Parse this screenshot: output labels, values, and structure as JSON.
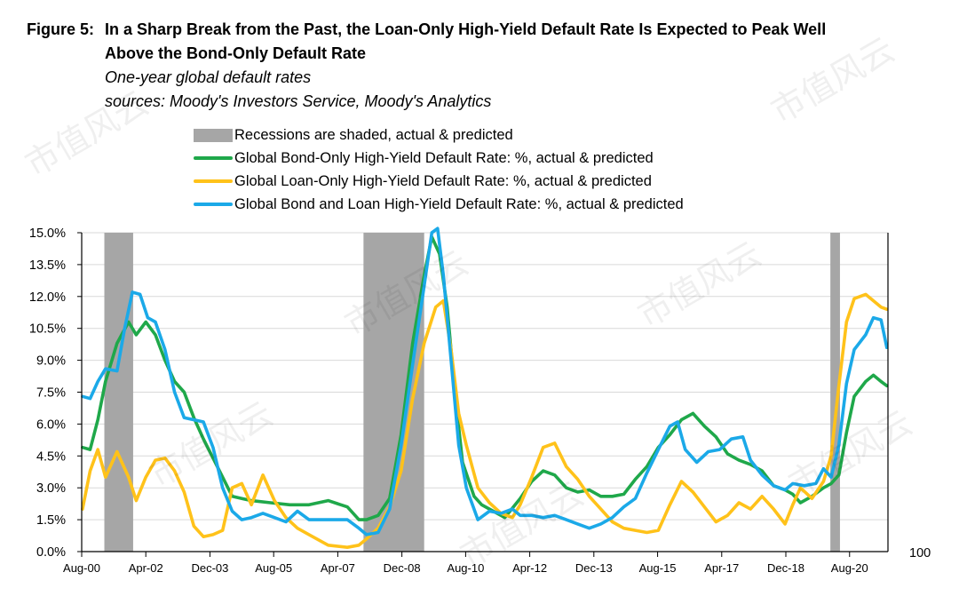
{
  "figure_label": "Figure 5:",
  "title": "In a Sharp Break from the Past, the Loan-Only High-Yield Default Rate Is Expected to Peak Well Above the Bond-Only Default Rate",
  "subtitle": "One-year global default rates",
  "sources": "sources: Moody's Investors Service, Moody's Analytics",
  "watermark": "市值风云",
  "legend": {
    "recession": "Recessions are shaded, actual & predicted",
    "bond_only": "Global Bond-Only High-Yield Default Rate: %, actual & predicted",
    "loan_only": "Global Loan-Only High-Yield Default Rate: %, actual & predicted",
    "bond_loan": "Global Bond and Loan High-Yield Default Rate: %, actual & predicted"
  },
  "colors": {
    "bond_only": "#1fa84a",
    "loan_only": "#ffc21a",
    "bond_loan": "#1ba9e8",
    "recession": "#a6a6a6"
  },
  "chart_data": {
    "type": "line",
    "title": "In a Sharp Break from the Past, the Loan-Only High-Yield Default Rate Is Expected to Peak Well Above the Bond-Only Default Rate",
    "ylabel": "%",
    "ylim": [
      0,
      15
    ],
    "yticks": [
      "0.0%",
      "1.5%",
      "3.0%",
      "4.5%",
      "6.0%",
      "7.5%",
      "9.0%",
      "10.5%",
      "12.0%",
      "13.5%",
      "15.0%"
    ],
    "xlim": [
      2000.58,
      2021.58
    ],
    "x_ticks": [
      {
        "label": "Aug-00",
        "x": 2000.58
      },
      {
        "label": "Apr-02",
        "x": 2002.25
      },
      {
        "label": "Dec-03",
        "x": 2003.92
      },
      {
        "label": "Aug-05",
        "x": 2005.58
      },
      {
        "label": "Apr-07",
        "x": 2007.25
      },
      {
        "label": "Dec-08",
        "x": 2008.92
      },
      {
        "label": "Aug-10",
        "x": 2010.58
      },
      {
        "label": "Apr-12",
        "x": 2012.25
      },
      {
        "label": "Dec-13",
        "x": 2013.92
      },
      {
        "label": "Aug-15",
        "x": 2015.58
      },
      {
        "label": "Apr-17",
        "x": 2017.25
      },
      {
        "label": "Dec-18",
        "x": 2018.92
      },
      {
        "label": "Aug-20",
        "x": 2020.58
      }
    ],
    "right_axis_label": "100",
    "recessions": [
      [
        2001.17,
        2001.92
      ],
      [
        2007.92,
        2009.5
      ],
      [
        2020.08,
        2020.33
      ]
    ],
    "series": [
      {
        "name": "Global Bond-Only High-Yield Default Rate",
        "key": "bond_only",
        "x": [
          2000.6,
          2000.8,
          2001.0,
          2001.2,
          2001.5,
          2001.8,
          2002.0,
          2002.25,
          2002.5,
          2002.75,
          2003.0,
          2003.25,
          2003.5,
          2003.75,
          2004.0,
          2004.25,
          2004.5,
          2004.75,
          2005.0,
          2005.5,
          2006.0,
          2006.5,
          2007.0,
          2007.5,
          2007.8,
          2008.0,
          2008.3,
          2008.6,
          2008.9,
          2009.2,
          2009.5,
          2009.7,
          2009.9,
          2010.1,
          2010.3,
          2010.5,
          2010.8,
          2011.0,
          2011.3,
          2011.6,
          2012.0,
          2012.3,
          2012.6,
          2012.9,
          2013.2,
          2013.5,
          2013.8,
          2014.1,
          2014.4,
          2014.7,
          2015.0,
          2015.3,
          2015.6,
          2015.9,
          2016.2,
          2016.5,
          2016.8,
          2017.1,
          2017.4,
          2017.7,
          2018.0,
          2018.3,
          2018.6,
          2018.9,
          2019.1,
          2019.3,
          2019.6,
          2019.9,
          2020.1,
          2020.3,
          2020.5,
          2020.7,
          2021.0,
          2021.2,
          2021.4,
          2021.55
        ],
        "values": [
          4.9,
          4.8,
          6.2,
          8.0,
          9.8,
          10.8,
          10.2,
          10.8,
          10.2,
          9.0,
          8.0,
          7.5,
          6.3,
          5.3,
          4.4,
          3.5,
          2.6,
          2.5,
          2.4,
          2.3,
          2.2,
          2.2,
          2.4,
          2.1,
          1.5,
          1.5,
          1.7,
          2.5,
          5.5,
          9.8,
          13.0,
          14.8,
          14.0,
          11.5,
          7.5,
          4.2,
          2.6,
          2.2,
          1.9,
          1.6,
          2.5,
          3.3,
          3.8,
          3.6,
          3.0,
          2.8,
          2.9,
          2.6,
          2.6,
          2.7,
          3.4,
          4.0,
          4.9,
          5.5,
          6.2,
          6.5,
          5.9,
          5.4,
          4.6,
          4.3,
          4.1,
          3.8,
          3.1,
          2.9,
          2.7,
          2.3,
          2.6,
          3.0,
          3.2,
          3.6,
          5.6,
          7.3,
          8.0,
          8.3,
          8.0,
          7.8
        ]
      },
      {
        "name": "Global Loan-Only High-Yield Default Rate",
        "key": "loan_only",
        "x": [
          2000.6,
          2000.8,
          2001.0,
          2001.2,
          2001.5,
          2001.8,
          2002.0,
          2002.25,
          2002.5,
          2002.75,
          2003.0,
          2003.25,
          2003.5,
          2003.75,
          2004.0,
          2004.25,
          2004.5,
          2004.75,
          2005.0,
          2005.3,
          2005.6,
          2005.9,
          2006.2,
          2006.5,
          2007.0,
          2007.5,
          2007.8,
          2008.0,
          2008.3,
          2008.6,
          2008.9,
          2009.2,
          2009.5,
          2009.8,
          2010.0,
          2010.2,
          2010.4,
          2010.6,
          2010.9,
          2011.2,
          2011.5,
          2011.8,
          2012.0,
          2012.3,
          2012.6,
          2012.9,
          2013.2,
          2013.5,
          2013.8,
          2014.1,
          2014.4,
          2014.7,
          2015.0,
          2015.3,
          2015.6,
          2015.9,
          2016.2,
          2016.5,
          2016.8,
          2017.1,
          2017.4,
          2017.7,
          2018.0,
          2018.3,
          2018.6,
          2018.9,
          2019.1,
          2019.3,
          2019.6,
          2019.9,
          2020.1,
          2020.3,
          2020.5,
          2020.7,
          2021.0,
          2021.2,
          2021.4,
          2021.55
        ],
        "values": [
          2.0,
          3.8,
          4.8,
          3.5,
          4.7,
          3.5,
          2.4,
          3.5,
          4.3,
          4.4,
          3.8,
          2.8,
          1.2,
          0.7,
          0.8,
          1.0,
          3.0,
          3.2,
          2.2,
          3.6,
          2.4,
          1.6,
          1.1,
          0.8,
          0.3,
          0.2,
          0.3,
          0.6,
          1.1,
          2.1,
          3.8,
          7.2,
          9.8,
          11.5,
          11.8,
          9.5,
          6.5,
          5.0,
          3.0,
          2.3,
          1.8,
          1.6,
          2.2,
          3.5,
          4.9,
          5.1,
          4.0,
          3.4,
          2.6,
          2.0,
          1.4,
          1.1,
          1.0,
          0.9,
          1.0,
          2.2,
          3.3,
          2.8,
          2.1,
          1.4,
          1.7,
          2.3,
          2.0,
          2.6,
          2.0,
          1.3,
          2.2,
          3.0,
          2.5,
          3.3,
          4.5,
          7.8,
          10.8,
          11.9,
          12.1,
          11.8,
          11.5,
          11.4
        ]
      },
      {
        "name": "Global Bond and Loan High-Yield Default Rate",
        "key": "bond_loan",
        "x": [
          2000.6,
          2000.8,
          2001.0,
          2001.2,
          2001.5,
          2001.7,
          2001.9,
          2002.1,
          2002.3,
          2002.5,
          2002.75,
          2003.0,
          2003.25,
          2003.5,
          2003.75,
          2004.0,
          2004.25,
          2004.5,
          2004.75,
          2005.0,
          2005.3,
          2005.6,
          2005.9,
          2006.2,
          2006.5,
          2007.0,
          2007.5,
          2007.8,
          2008.0,
          2008.3,
          2008.6,
          2008.9,
          2009.2,
          2009.5,
          2009.7,
          2009.85,
          2010.0,
          2010.2,
          2010.4,
          2010.6,
          2010.9,
          2011.2,
          2011.5,
          2011.8,
          2012.0,
          2012.3,
          2012.6,
          2012.9,
          2013.2,
          2013.5,
          2013.8,
          2014.1,
          2014.4,
          2014.7,
          2015.0,
          2015.3,
          2015.6,
          2015.9,
          2016.1,
          2016.3,
          2016.6,
          2016.9,
          2017.2,
          2017.5,
          2017.8,
          2018.0,
          2018.3,
          2018.6,
          2018.9,
          2019.1,
          2019.4,
          2019.7,
          2019.9,
          2020.1,
          2020.3,
          2020.5,
          2020.7,
          2021.0,
          2021.2,
          2021.4,
          2021.55
        ],
        "values": [
          7.3,
          7.2,
          8.0,
          8.6,
          8.5,
          10.5,
          12.2,
          12.1,
          11.0,
          10.8,
          9.5,
          7.5,
          6.3,
          6.2,
          6.1,
          4.9,
          3.0,
          1.9,
          1.5,
          1.6,
          1.8,
          1.6,
          1.4,
          1.9,
          1.5,
          1.5,
          1.5,
          1.1,
          0.8,
          0.9,
          2.0,
          5.0,
          8.8,
          12.5,
          15.0,
          15.2,
          13.0,
          9.0,
          5.0,
          3.0,
          1.5,
          1.9,
          1.8,
          2.0,
          1.7,
          1.7,
          1.6,
          1.7,
          1.5,
          1.3,
          1.1,
          1.3,
          1.6,
          2.1,
          2.5,
          3.7,
          4.8,
          5.9,
          6.1,
          4.8,
          4.2,
          4.7,
          4.8,
          5.3,
          5.4,
          4.3,
          3.6,
          3.1,
          2.9,
          3.2,
          3.1,
          3.2,
          3.9,
          3.5,
          5.0,
          7.9,
          9.5,
          10.2,
          11.0,
          10.9,
          9.6
        ]
      }
    ]
  }
}
